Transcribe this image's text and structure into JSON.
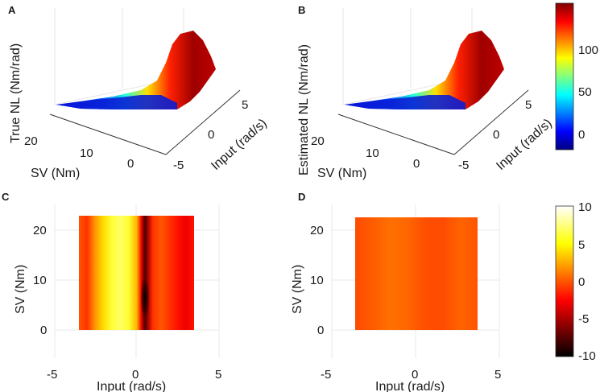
{
  "panels": {
    "a": {
      "label": "A",
      "zlabel": "True NL (Nm/rad)",
      "xlabel": "SV (Nm)",
      "ylabel": "Input (rad/s)",
      "xticks": [
        "20",
        "10",
        "0"
      ],
      "yticks": [
        "-5",
        "0",
        "5"
      ]
    },
    "b": {
      "label": "B",
      "zlabel": "Estimated NL (Nm/rad)",
      "xlabel": "SV (Nm)",
      "ylabel": "Input (rad/s)",
      "xticks": [
        "20",
        "10",
        "0"
      ],
      "yticks": [
        "-5",
        "0",
        "5"
      ]
    },
    "c": {
      "label": "C",
      "xlabel": "Input (rad/s)",
      "ylabel": "SV (Nm)",
      "xticks": [
        "-5",
        "0",
        "5"
      ],
      "yticks": [
        "20",
        "10",
        "0"
      ]
    },
    "d": {
      "label": "D",
      "xlabel": "Input (rad/s)",
      "ylabel": "SV (Nm)",
      "xticks": [
        "-5",
        "0",
        "5"
      ],
      "yticks": [
        "20",
        "10",
        "0"
      ]
    }
  },
  "colorbars": {
    "top": {
      "colormap": "jet",
      "ticks": [
        "100",
        "50",
        "0"
      ]
    },
    "bottom": {
      "colormap": "hot",
      "ticks": [
        "10",
        "5",
        "0",
        "-5",
        "-10"
      ]
    }
  },
  "chart_data": [
    {
      "panel": "A",
      "type": "surface",
      "title": "",
      "xlabel": "SV (Nm)",
      "ylabel": "Input (rad/s)",
      "zlabel": "True NL (Nm/rad)",
      "sv_range": [
        0,
        23
      ],
      "input_range": [
        -3.5,
        3.5
      ],
      "input_samples": [
        -3.5,
        -2.5,
        -1.5,
        -0.5,
        0.5,
        1.5,
        2.5,
        3.5
      ],
      "nl_profile": [
        0,
        2,
        12,
        45,
        85,
        115,
        135,
        130
      ],
      "clim": [
        -20,
        140
      ]
    },
    {
      "panel": "B",
      "type": "surface",
      "title": "",
      "xlabel": "SV (Nm)",
      "ylabel": "Input (rad/s)",
      "zlabel": "Estimated NL (Nm/rad)",
      "sv_range": [
        0,
        23
      ],
      "input_range": [
        -3.5,
        3.5
      ],
      "input_samples": [
        -3.5,
        -2.5,
        -1.5,
        -0.5,
        0.5,
        1.5,
        2.5,
        3.5
      ],
      "nl_profile": [
        0,
        2,
        12,
        45,
        85,
        115,
        135,
        130
      ],
      "clim": [
        -20,
        140
      ]
    },
    {
      "panel": "C",
      "type": "heatmap",
      "xlabel": "Input (rad/s)",
      "ylabel": "SV (Nm)",
      "xlim": [
        -5,
        5
      ],
      "ylim": [
        -3,
        25
      ],
      "x_extent": [
        -3.5,
        3.5
      ],
      "y_extent": [
        0,
        23
      ],
      "input_samples": [
        -3.5,
        -3.0,
        -2.5,
        -2.0,
        -1.5,
        -1.0,
        -0.5,
        0.0,
        0.3,
        0.5,
        0.7,
        1.0,
        1.5,
        2.0,
        2.5,
        3.0,
        3.5
      ],
      "error_profile": [
        0,
        -1,
        2,
        4,
        6,
        7,
        6,
        3,
        -3,
        -8,
        -5,
        -1,
        0,
        -1,
        -2,
        -3,
        -2
      ],
      "clim": [
        -10,
        10
      ]
    },
    {
      "panel": "D",
      "type": "heatmap",
      "xlabel": "Input (rad/s)",
      "ylabel": "SV (Nm)",
      "xlim": [
        -5,
        5
      ],
      "ylim": [
        -3,
        25
      ],
      "x_extent": [
        -3.5,
        3.5
      ],
      "y_extent": [
        0,
        23
      ],
      "input_samples": [
        -3.5,
        -2.5,
        -1.5,
        -0.5,
        0.5,
        1.5,
        2.5,
        3.5
      ],
      "error_profile": [
        -0.3,
        0.2,
        0.8,
        0.5,
        -0.2,
        -0.3,
        0.4,
        0.0
      ],
      "clim": [
        -10,
        10
      ]
    }
  ]
}
